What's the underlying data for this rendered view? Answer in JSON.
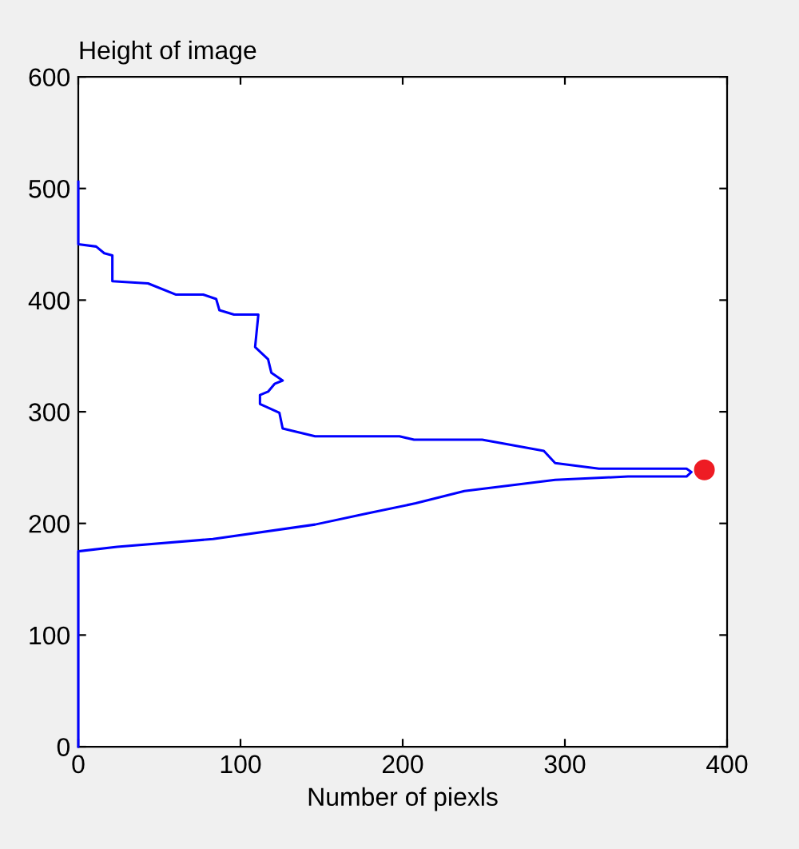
{
  "chart_data": {
    "type": "line",
    "title": "Height of image",
    "xlabel": "Number of piexls",
    "xlim": [
      0,
      400
    ],
    "xticks": [
      0,
      100,
      200,
      300,
      400
    ],
    "ylim": [
      0,
      600
    ],
    "yticks": [
      0,
      100,
      200,
      300,
      400,
      500,
      600
    ],
    "grid": false,
    "series": [
      {
        "color": "#0000ff",
        "x": [
          0,
          0,
          11,
          16,
          21,
          21,
          43,
          60,
          77,
          85,
          87,
          96,
          111,
          109,
          117,
          119,
          126,
          121,
          117,
          112,
          112,
          124,
          126,
          146,
          198,
          207,
          249,
          264,
          287,
          294,
          321,
          375,
          378,
          375,
          339,
          294,
          277,
          238,
          208,
          178,
          146,
          83,
          24,
          0,
          0
        ],
        "values": [
          506,
          450,
          448,
          442,
          440,
          417,
          415,
          405,
          405,
          401,
          391,
          387,
          387,
          358,
          347,
          335,
          328,
          325,
          318,
          315,
          307,
          299,
          285,
          278,
          278,
          275,
          275,
          271,
          265,
          254,
          249,
          249,
          246,
          242,
          242,
          239,
          236,
          229,
          218,
          209,
          199,
          186,
          179,
          175,
          0
        ]
      },
      {
        "type": "scatter",
        "color": "#ee1c24",
        "marker": "circle",
        "x": [
          386
        ],
        "values": [
          248
        ]
      }
    ]
  }
}
